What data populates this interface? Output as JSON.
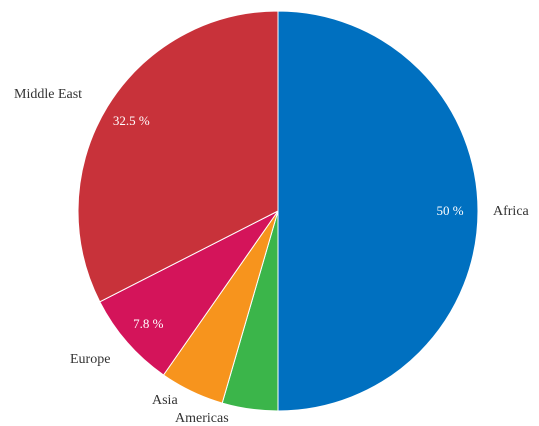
{
  "chart_data": {
    "type": "pie",
    "categories": [
      "Africa",
      "Americas",
      "Asia",
      "Europe",
      "Middle East"
    ],
    "values": [
      50,
      4.5,
      5.2,
      7.8,
      32.5
    ],
    "value_labels": [
      "50 %",
      "",
      "",
      "7.8 %",
      "32.5 %"
    ],
    "colors": [
      "#0070C0",
      "#3BB54A",
      "#F7941D",
      "#D4145A",
      "#C8323A"
    ],
    "title": "",
    "legend": "none"
  }
}
